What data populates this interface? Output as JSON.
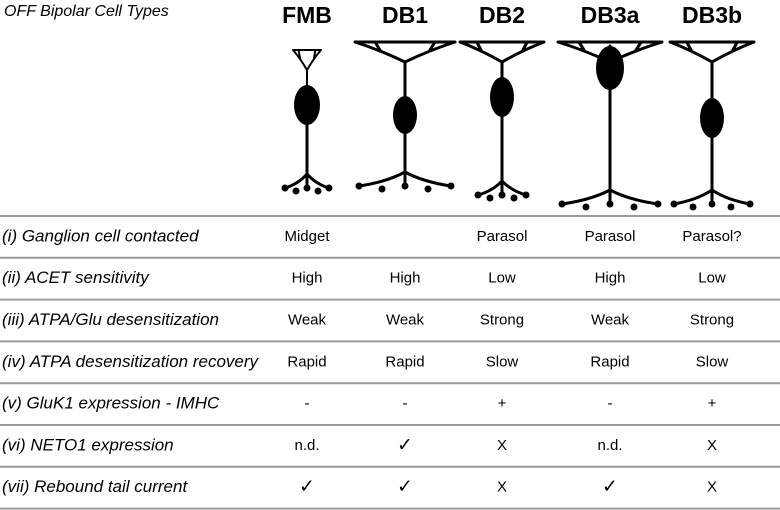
{
  "title": "OFF Bipolar Cell Types",
  "columns": [
    "FMB",
    "DB1",
    "DB2",
    "DB3a",
    "DB3b"
  ],
  "rows": [
    {
      "label": "(i) Ganglion cell contacted",
      "cells": [
        "Midget",
        null,
        "Parasol",
        "Parasol",
        "Parasol?"
      ]
    },
    {
      "label": "(ii) ACET sensitivity",
      "cells": [
        "High",
        "High",
        "Low",
        "High",
        "Low"
      ]
    },
    {
      "label": "(iii) ATPA/Glu desensitization",
      "cells": [
        "Weak",
        "Weak",
        "Strong",
        "Weak",
        "Strong"
      ]
    },
    {
      "label": "(iv) ATPA desensitization recovery",
      "cells": [
        "Rapid",
        "Rapid",
        "Slow",
        "Rapid",
        "Slow"
      ]
    },
    {
      "label": "(v) GluK1 expression - IMHC",
      "cells": [
        "-",
        "-",
        "+",
        "-",
        "+"
      ]
    },
    {
      "label": "(vi) NETO1 expression",
      "cells": [
        "n.d.",
        "✓",
        "X",
        "n.d.",
        "X"
      ]
    },
    {
      "label": "(vii) Rebound tail current",
      "cells": [
        "✓",
        "✓",
        "X",
        "✓",
        "X"
      ]
    }
  ]
}
